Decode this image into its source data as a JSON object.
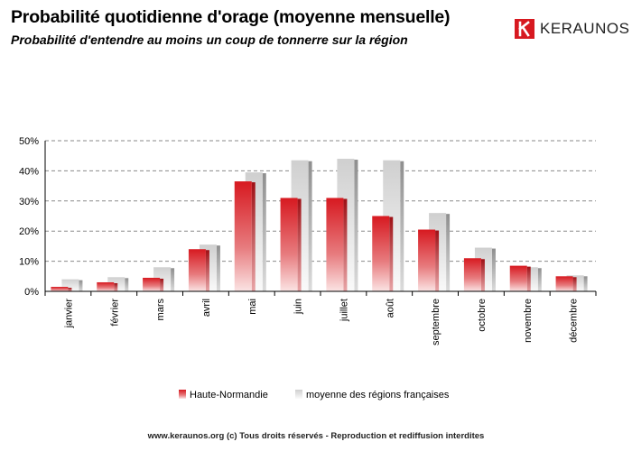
{
  "title": "Probabilité quotidienne d'orage (moyenne mensuelle)",
  "subtitle": "Probabilité d'entendre au moins un coup de tonnerre sur la région",
  "logo": {
    "text": "KERAUNOS",
    "icon": "keraunos-logo-icon",
    "color": "#d71920"
  },
  "footer": {
    "site": "www.keraunos.org",
    "rights": "(c) Tous droits réservés - Reproduction et rediffusion interdites"
  },
  "chart_data": {
    "type": "bar",
    "title": "",
    "xlabel": "",
    "ylabel": "",
    "categories": [
      "janvier",
      "février",
      "mars",
      "avril",
      "mai",
      "juin",
      "juillet",
      "août",
      "septembre",
      "octobre",
      "novembre",
      "décembre"
    ],
    "series": [
      {
        "name": "Haute-Normandie",
        "color": "#d71920",
        "values": [
          1.5,
          3.0,
          4.5,
          14.0,
          36.5,
          31.0,
          31.0,
          25.0,
          20.5,
          11.0,
          8.5,
          5.0
        ]
      },
      {
        "name": "moyenne des régions françaises",
        "color": "#c8c8c8",
        "values": [
          4.0,
          4.7,
          8.0,
          15.5,
          39.5,
          43.5,
          44.0,
          43.5,
          26.0,
          14.5,
          8.0,
          5.3
        ]
      }
    ],
    "ylim": [
      0,
      50
    ],
    "yticks": [
      "0%",
      "10%",
      "20%",
      "30%",
      "40%",
      "50%"
    ],
    "grid": true,
    "legend": "bottom"
  }
}
